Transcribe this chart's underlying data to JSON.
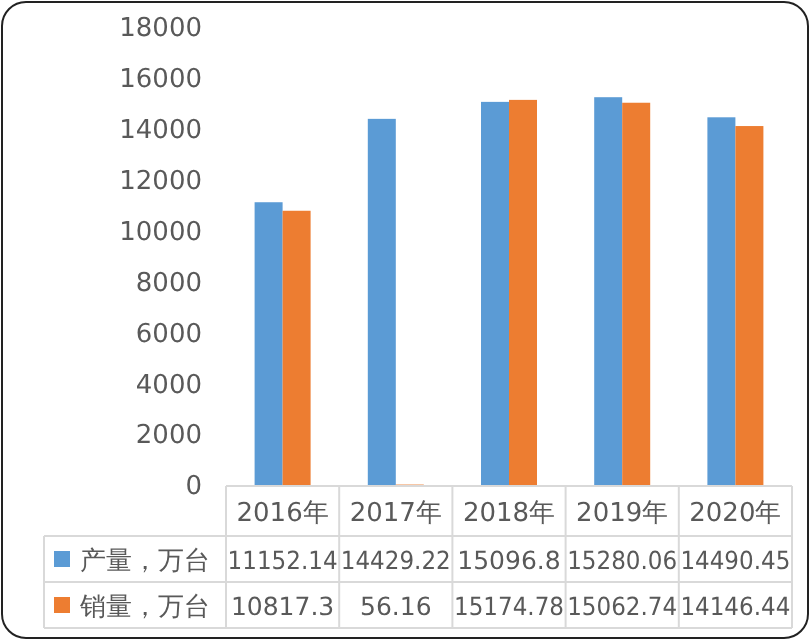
{
  "chart_data": {
    "type": "bar",
    "categories": [
      "2016年",
      "2017年",
      "2018年",
      "2019年",
      "2020年"
    ],
    "series": [
      {
        "name": "产量，万台",
        "color": "#5b9bd5",
        "values": [
          11152.14,
          14429.22,
          15096.8,
          15280.06,
          14490.45
        ]
      },
      {
        "name": "销量，万台",
        "color": "#ed7d31",
        "values": [
          10817.3,
          56.16,
          15174.78,
          15062.74,
          14146.44
        ]
      }
    ],
    "ylim": [
      0,
      18000
    ],
    "yticks": [
      0,
      2000,
      4000,
      6000,
      8000,
      10000,
      12000,
      14000,
      16000,
      18000
    ],
    "grid": false,
    "legend": "bottom",
    "data_labels": true
  }
}
